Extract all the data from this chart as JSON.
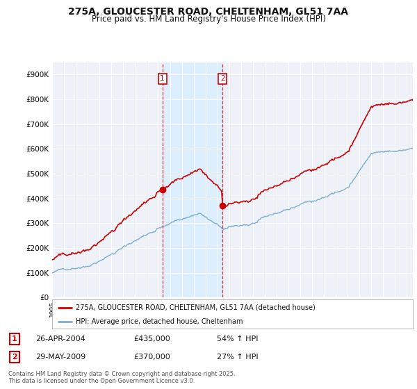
{
  "title_line1": "275A, GLOUCESTER ROAD, CHELTENHAM, GL51 7AA",
  "title_line2": "Price paid vs. HM Land Registry's House Price Index (HPI)",
  "legend_line1": "275A, GLOUCESTER ROAD, CHELTENHAM, GL51 7AA (detached house)",
  "legend_line2": "HPI: Average price, detached house, Cheltenham",
  "transaction1_date": "26-APR-2004",
  "transaction1_price": "£435,000",
  "transaction1_hpi": "54% ↑ HPI",
  "transaction2_date": "29-MAY-2009",
  "transaction2_price": "£370,000",
  "transaction2_hpi": "27% ↑ HPI",
  "footer": "Contains HM Land Registry data © Crown copyright and database right 2025.\nThis data is licensed under the Open Government Licence v3.0.",
  "red_color": "#cc0000",
  "blue_color": "#7aadcf",
  "shaded_color": "#ddeeff",
  "background_color": "#ffffff",
  "plot_bg_color": "#eef2f8",
  "grid_color": "#cccccc",
  "marker1_x": 2004.32,
  "marker1_y": 435000,
  "marker2_x": 2009.41,
  "marker2_y": 370000,
  "ylim": [
    0,
    950000
  ],
  "xlim_start": 1995,
  "xlim_end": 2025.5
}
